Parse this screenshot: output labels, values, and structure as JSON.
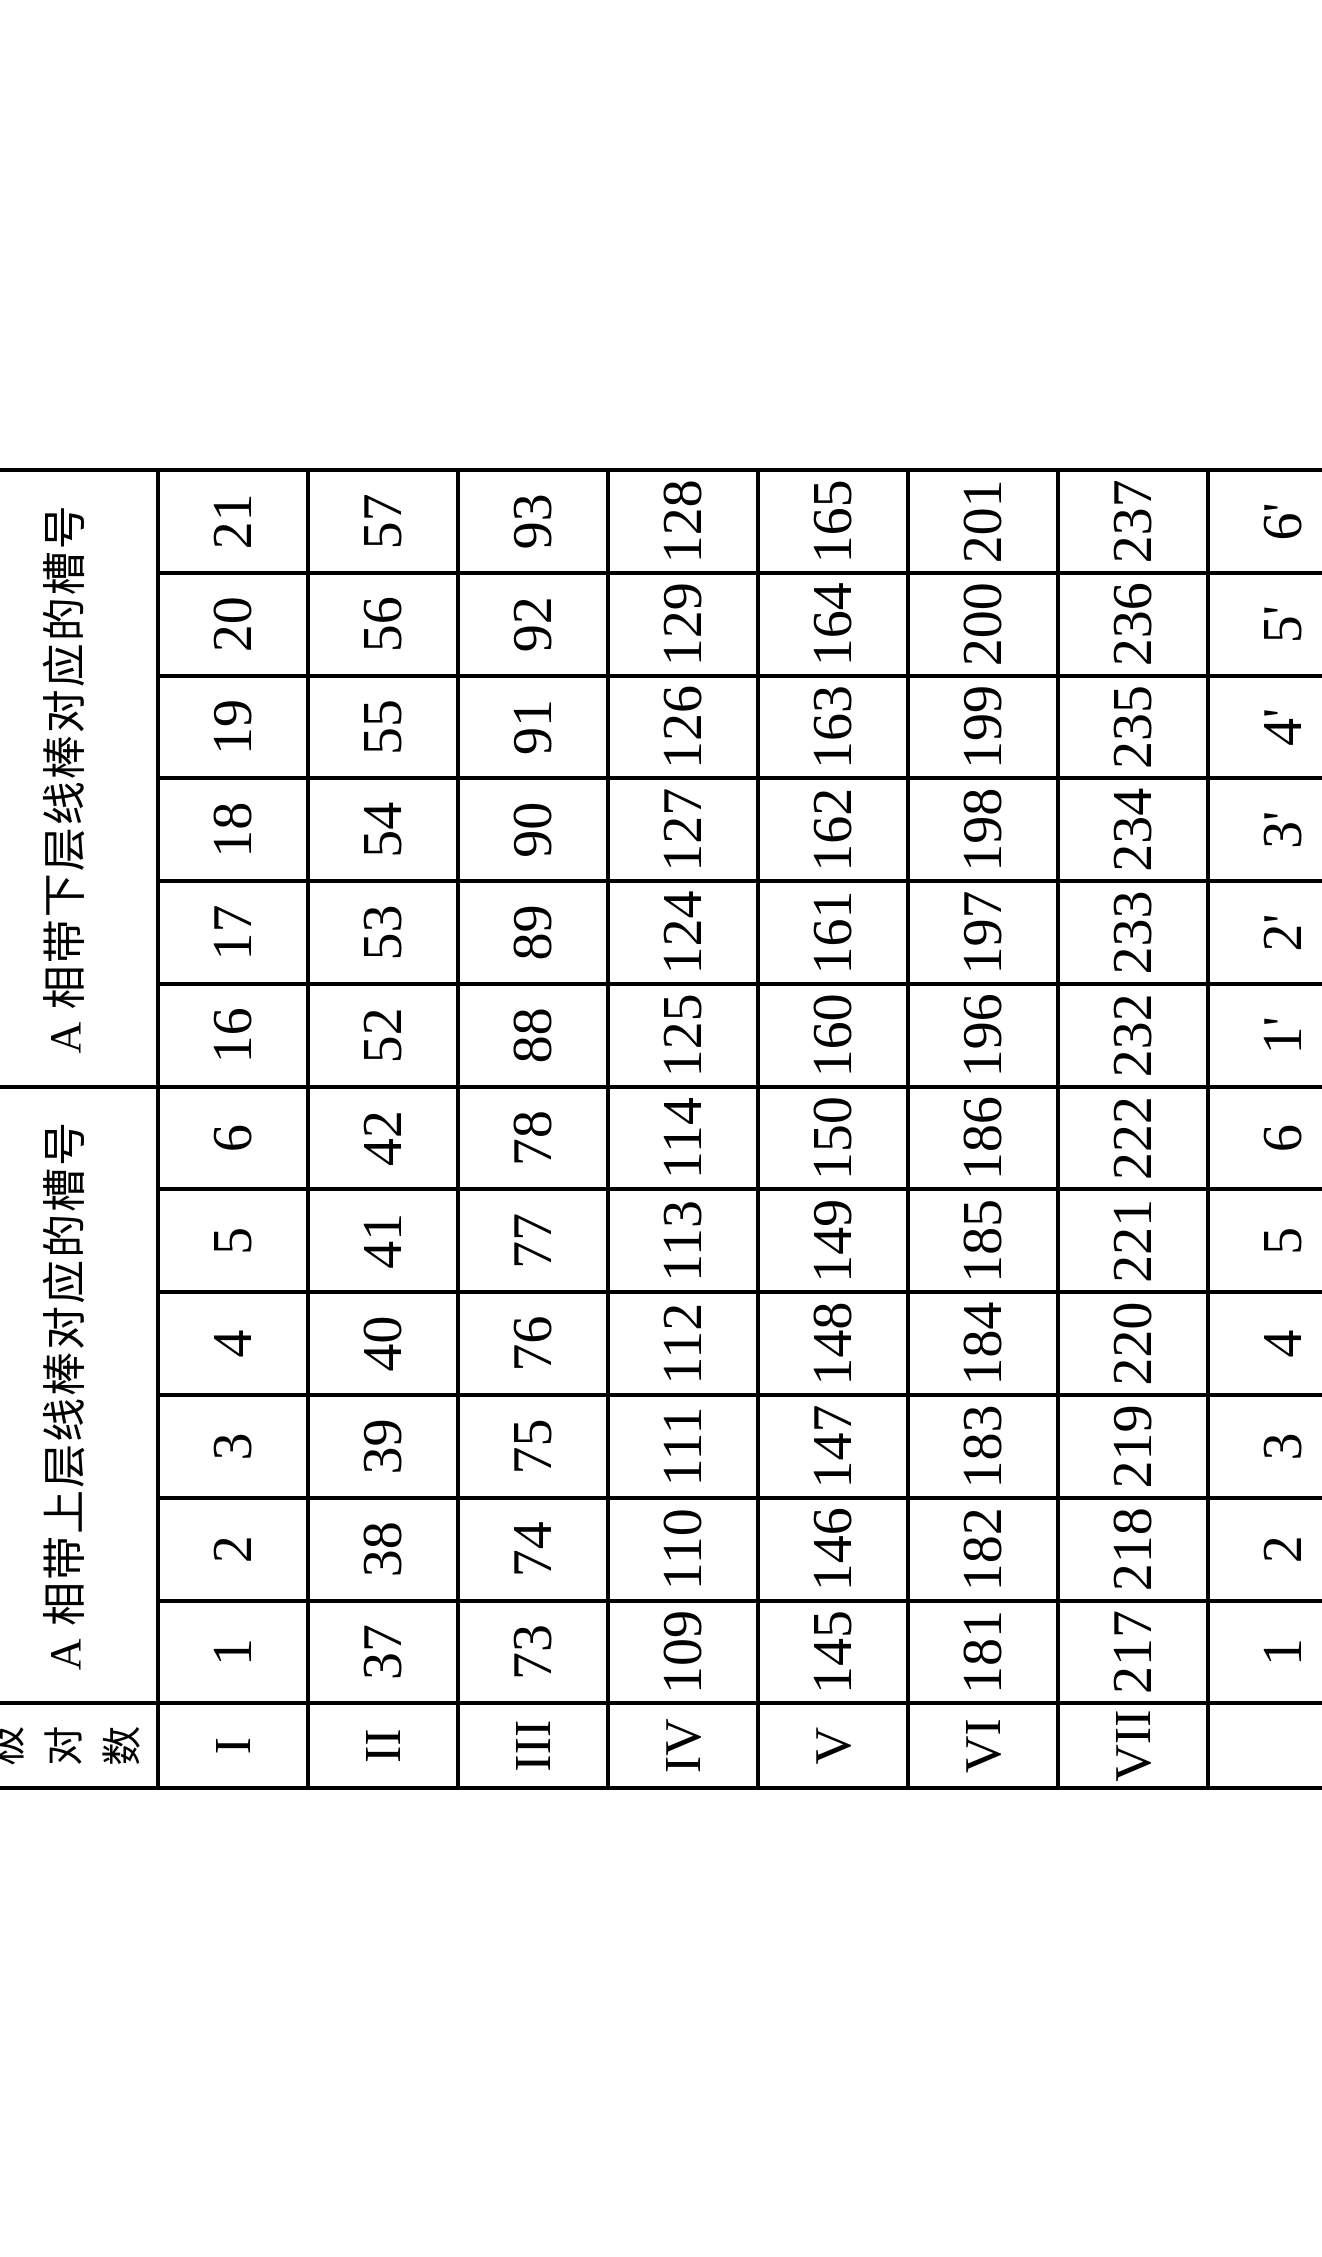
{
  "table": {
    "corner_label": "极对数",
    "group_headers": [
      "A 相带上层线棒对应的槽号",
      "A 相带下层线棒对应的槽号"
    ],
    "group_col_count": 6,
    "row_labels": [
      "I",
      "II",
      "III",
      "IV",
      "V",
      "VI",
      "VII",
      ""
    ],
    "rows": [
      [
        "1",
        "2",
        "3",
        "4",
        "5",
        "6",
        "16",
        "17",
        "18",
        "19",
        "20",
        "21"
      ],
      [
        "37",
        "38",
        "39",
        "40",
        "41",
        "42",
        "52",
        "53",
        "54",
        "55",
        "56",
        "57"
      ],
      [
        "73",
        "74",
        "75",
        "76",
        "77",
        "78",
        "88",
        "89",
        "90",
        "91",
        "92",
        "93"
      ],
      [
        "109",
        "110",
        "111",
        "112",
        "113",
        "114",
        "125",
        "124",
        "127",
        "126",
        "129",
        "128"
      ],
      [
        "145",
        "146",
        "147",
        "148",
        "149",
        "150",
        "160",
        "161",
        "162",
        "163",
        "164",
        "165"
      ],
      [
        "181",
        "182",
        "183",
        "184",
        "185",
        "186",
        "196",
        "197",
        "198",
        "199",
        "200",
        "201"
      ],
      [
        "217",
        "218",
        "219",
        "220",
        "221",
        "222",
        "232",
        "233",
        "234",
        "235",
        "236",
        "237"
      ],
      [
        "1",
        "2",
        "3",
        "4",
        "5",
        "6",
        "1'",
        "2'",
        "3'",
        "4'",
        "5'",
        "6'"
      ]
    ],
    "colors": {
      "border": "#000000",
      "background": "#ffffff",
      "text": "#000000"
    },
    "fontsize": {
      "header": 44,
      "corner": 40,
      "row_label": 52,
      "cell": 56
    },
    "cell_size": {
      "w": 165,
      "h": 150
    },
    "label_col_width": 120,
    "border_width": 4,
    "rotation_deg": -90
  }
}
